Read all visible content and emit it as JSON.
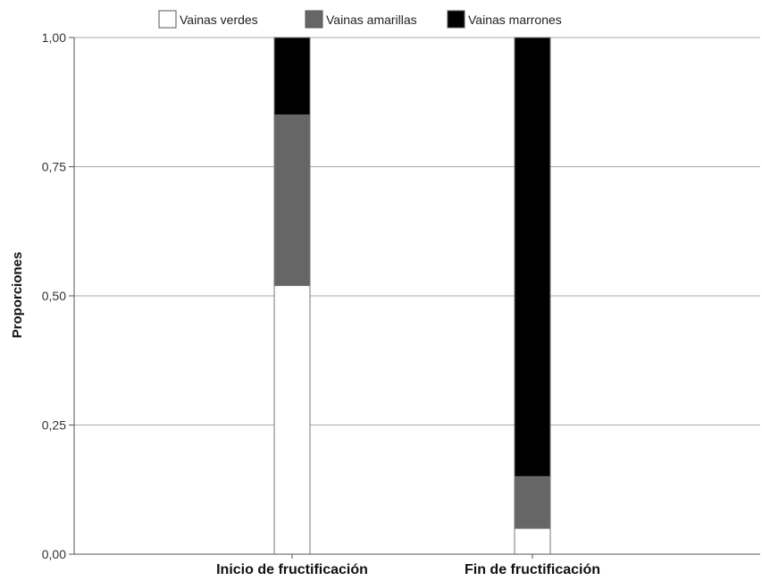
{
  "chart_data": {
    "type": "bar",
    "stacked": true,
    "ylabel": "Proporciones",
    "xlabel": "",
    "ylim": [
      0,
      1
    ],
    "yticks": [
      {
        "value": 0,
        "label": "0,00"
      },
      {
        "value": 0.25,
        "label": "0,25"
      },
      {
        "value": 0.5,
        "label": "0,50"
      },
      {
        "value": 0.75,
        "label": "0,75"
      },
      {
        "value": 1,
        "label": "1,00"
      }
    ],
    "categories": [
      "Inicio de fructificación",
      "Fin de fructificación"
    ],
    "series": [
      {
        "name": "Vainas verdes",
        "color": "#ffffff",
        "values": [
          0.52,
          0.05
        ]
      },
      {
        "name": "Vainas amarillas",
        "color": "#666666",
        "values": [
          0.33,
          0.1
        ]
      },
      {
        "name": "Vainas marrones",
        "color": "#000000",
        "values": [
          0.15,
          0.85
        ]
      }
    ],
    "grid": true,
    "legend": "top"
  }
}
